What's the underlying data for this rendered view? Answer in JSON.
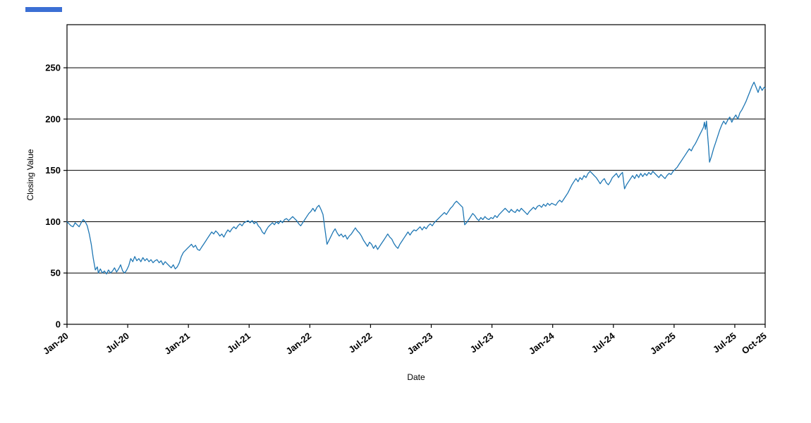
{
  "decoration": {
    "bar_color": "#3b6fd4"
  },
  "chart_data": {
    "type": "line",
    "title": "",
    "xlabel": "Date",
    "ylabel": "Closing Value",
    "series_name": "Closing Value",
    "line_color": "#1f77b4",
    "grid_color": "#000000",
    "background_color": "#ffffff",
    "legend": "none",
    "grid": "horizontal",
    "xlim": [
      0,
      69
    ],
    "ylim": [
      0,
      292
    ],
    "y_ticks": [
      0,
      50,
      100,
      150,
      200,
      250
    ],
    "x_ticks": [
      {
        "label": "Jan-20",
        "m": 0
      },
      {
        "label": "Jul-20",
        "m": 6
      },
      {
        "label": "Jan-21",
        "m": 12
      },
      {
        "label": "Jul-21",
        "m": 18
      },
      {
        "label": "Jan-22",
        "m": 24
      },
      {
        "label": "Jul-22",
        "m": 30
      },
      {
        "label": "Jan-23",
        "m": 36
      },
      {
        "label": "Jul-23",
        "m": 42
      },
      {
        "label": "Jan-24",
        "m": 48
      },
      {
        "label": "Jul-24",
        "m": 54
      },
      {
        "label": "Jan-25",
        "m": 60
      },
      {
        "label": "Jul-25",
        "m": 66
      },
      {
        "label": "Oct-25",
        "m": 69
      }
    ],
    "x_unit": "months since Jan-2020",
    "points": [
      [
        0,
        100
      ],
      [
        0.2,
        98
      ],
      [
        0.4,
        96
      ],
      [
        0.6,
        95
      ],
      [
        0.8,
        99
      ],
      [
        1,
        97
      ],
      [
        1.2,
        95
      ],
      [
        1.4,
        99
      ],
      [
        1.6,
        102
      ],
      [
        1.8,
        100
      ],
      [
        2,
        96
      ],
      [
        2.2,
        88
      ],
      [
        2.4,
        78
      ],
      [
        2.6,
        64
      ],
      [
        2.8,
        53
      ],
      [
        3,
        56
      ],
      [
        3.1,
        50
      ],
      [
        3.3,
        54
      ],
      [
        3.5,
        50
      ],
      [
        3.7,
        52
      ],
      [
        3.9,
        49
      ],
      [
        4.1,
        53
      ],
      [
        4.3,
        50
      ],
      [
        4.5,
        52
      ],
      [
        4.7,
        55
      ],
      [
        4.9,
        51
      ],
      [
        5.1,
        54
      ],
      [
        5.3,
        58
      ],
      [
        5.5,
        52
      ],
      [
        5.7,
        50
      ],
      [
        5.9,
        53
      ],
      [
        6.1,
        57
      ],
      [
        6.3,
        64
      ],
      [
        6.5,
        61
      ],
      [
        6.7,
        66
      ],
      [
        6.9,
        62
      ],
      [
        7.1,
        64
      ],
      [
        7.3,
        61
      ],
      [
        7.5,
        65
      ],
      [
        7.7,
        62
      ],
      [
        7.9,
        64
      ],
      [
        8.1,
        61
      ],
      [
        8.3,
        63
      ],
      [
        8.5,
        60
      ],
      [
        8.7,
        62
      ],
      [
        8.9,
        63
      ],
      [
        9.1,
        60
      ],
      [
        9.3,
        62
      ],
      [
        9.5,
        58
      ],
      [
        9.7,
        61
      ],
      [
        9.9,
        59
      ],
      [
        10.1,
        57
      ],
      [
        10.3,
        55
      ],
      [
        10.5,
        58
      ],
      [
        10.7,
        54
      ],
      [
        10.9,
        56
      ],
      [
        11.1,
        60
      ],
      [
        11.3,
        66
      ],
      [
        11.5,
        70
      ],
      [
        11.7,
        72
      ],
      [
        11.9,
        74
      ],
      [
        12.1,
        76
      ],
      [
        12.3,
        78
      ],
      [
        12.5,
        75
      ],
      [
        12.7,
        77
      ],
      [
        12.9,
        73
      ],
      [
        13.1,
        72
      ],
      [
        13.3,
        75
      ],
      [
        13.5,
        78
      ],
      [
        13.7,
        81
      ],
      [
        13.9,
        84
      ],
      [
        14.1,
        87
      ],
      [
        14.3,
        90
      ],
      [
        14.5,
        88
      ],
      [
        14.7,
        91
      ],
      [
        14.9,
        89
      ],
      [
        15.1,
        86
      ],
      [
        15.3,
        88
      ],
      [
        15.5,
        85
      ],
      [
        15.7,
        89
      ],
      [
        15.9,
        92
      ],
      [
        16.1,
        90
      ],
      [
        16.3,
        93
      ],
      [
        16.5,
        95
      ],
      [
        16.7,
        93
      ],
      [
        16.9,
        96
      ],
      [
        17.1,
        98
      ],
      [
        17.3,
        96
      ],
      [
        17.5,
        99
      ],
      [
        17.7,
        100
      ],
      [
        17.9,
        101
      ],
      [
        18.1,
        99
      ],
      [
        18.3,
        101
      ],
      [
        18.5,
        98
      ],
      [
        18.7,
        100
      ],
      [
        18.9,
        96
      ],
      [
        19.1,
        94
      ],
      [
        19.3,
        90
      ],
      [
        19.5,
        88
      ],
      [
        19.7,
        92
      ],
      [
        19.9,
        95
      ],
      [
        20.1,
        97
      ],
      [
        20.3,
        99
      ],
      [
        20.5,
        97
      ],
      [
        20.7,
        100
      ],
      [
        20.9,
        98
      ],
      [
        21.1,
        101
      ],
      [
        21.3,
        99
      ],
      [
        21.5,
        102
      ],
      [
        21.7,
        103
      ],
      [
        21.9,
        101
      ],
      [
        22.1,
        103
      ],
      [
        22.3,
        105
      ],
      [
        22.5,
        103
      ],
      [
        22.7,
        101
      ],
      [
        22.9,
        98
      ],
      [
        23.1,
        96
      ],
      [
        23.3,
        99
      ],
      [
        23.5,
        102
      ],
      [
        23.7,
        105
      ],
      [
        23.9,
        108
      ],
      [
        24.1,
        110
      ],
      [
        24.3,
        113
      ],
      [
        24.5,
        110
      ],
      [
        24.7,
        114
      ],
      [
        24.9,
        116
      ],
      [
        25.1,
        112
      ],
      [
        25.3,
        107
      ],
      [
        25.5,
        92
      ],
      [
        25.7,
        78
      ],
      [
        25.9,
        82
      ],
      [
        26.1,
        86
      ],
      [
        26.3,
        90
      ],
      [
        26.5,
        93
      ],
      [
        26.7,
        89
      ],
      [
        26.9,
        86
      ],
      [
        27.1,
        88
      ],
      [
        27.3,
        85
      ],
      [
        27.5,
        87
      ],
      [
        27.7,
        83
      ],
      [
        27.9,
        86
      ],
      [
        28.1,
        88
      ],
      [
        28.3,
        91
      ],
      [
        28.5,
        94
      ],
      [
        28.7,
        91
      ],
      [
        28.9,
        89
      ],
      [
        29.1,
        86
      ],
      [
        29.3,
        82
      ],
      [
        29.5,
        79
      ],
      [
        29.7,
        76
      ],
      [
        29.9,
        80
      ],
      [
        30.1,
        78
      ],
      [
        30.3,
        74
      ],
      [
        30.5,
        77
      ],
      [
        30.7,
        73
      ],
      [
        30.9,
        76
      ],
      [
        31.1,
        79
      ],
      [
        31.3,
        82
      ],
      [
        31.5,
        85
      ],
      [
        31.7,
        88
      ],
      [
        31.9,
        85
      ],
      [
        32.1,
        83
      ],
      [
        32.3,
        79
      ],
      [
        32.5,
        76
      ],
      [
        32.7,
        74
      ],
      [
        32.9,
        78
      ],
      [
        33.1,
        81
      ],
      [
        33.3,
        84
      ],
      [
        33.5,
        87
      ],
      [
        33.7,
        90
      ],
      [
        33.9,
        87
      ],
      [
        34.1,
        90
      ],
      [
        34.3,
        92
      ],
      [
        34.5,
        91
      ],
      [
        34.7,
        93
      ],
      [
        34.9,
        95
      ],
      [
        35.1,
        92
      ],
      [
        35.3,
        95
      ],
      [
        35.5,
        93
      ],
      [
        35.7,
        96
      ],
      [
        35.9,
        98
      ],
      [
        36.1,
        96
      ],
      [
        36.3,
        99
      ],
      [
        36.5,
        101
      ],
      [
        36.7,
        103
      ],
      [
        36.9,
        105
      ],
      [
        37.1,
        107
      ],
      [
        37.3,
        109
      ],
      [
        37.5,
        107
      ],
      [
        37.7,
        110
      ],
      [
        37.9,
        113
      ],
      [
        38.1,
        115
      ],
      [
        38.3,
        118
      ],
      [
        38.5,
        120
      ],
      [
        38.7,
        118
      ],
      [
        38.9,
        116
      ],
      [
        39.1,
        114
      ],
      [
        39.3,
        97
      ],
      [
        39.5,
        99
      ],
      [
        39.7,
        102
      ],
      [
        39.9,
        105
      ],
      [
        40.1,
        108
      ],
      [
        40.3,
        106
      ],
      [
        40.5,
        103
      ],
      [
        40.7,
        101
      ],
      [
        40.9,
        104
      ],
      [
        41.1,
        102
      ],
      [
        41.3,
        105
      ],
      [
        41.5,
        103
      ],
      [
        41.7,
        102
      ],
      [
        41.9,
        104
      ],
      [
        42.1,
        103
      ],
      [
        42.3,
        106
      ],
      [
        42.5,
        104
      ],
      [
        42.7,
        107
      ],
      [
        42.9,
        109
      ],
      [
        43.1,
        111
      ],
      [
        43.3,
        113
      ],
      [
        43.5,
        111
      ],
      [
        43.7,
        109
      ],
      [
        43.9,
        112
      ],
      [
        44.1,
        110
      ],
      [
        44.3,
        109
      ],
      [
        44.5,
        112
      ],
      [
        44.7,
        110
      ],
      [
        44.9,
        113
      ],
      [
        45.1,
        111
      ],
      [
        45.3,
        109
      ],
      [
        45.5,
        107
      ],
      [
        45.7,
        110
      ],
      [
        45.9,
        112
      ],
      [
        46.1,
        114
      ],
      [
        46.3,
        112
      ],
      [
        46.5,
        115
      ],
      [
        46.7,
        116
      ],
      [
        46.9,
        114
      ],
      [
        47.1,
        117
      ],
      [
        47.3,
        115
      ],
      [
        47.5,
        118
      ],
      [
        47.7,
        116
      ],
      [
        47.9,
        118
      ],
      [
        48.1,
        117
      ],
      [
        48.3,
        116
      ],
      [
        48.5,
        119
      ],
      [
        48.7,
        121
      ],
      [
        48.9,
        119
      ],
      [
        49.1,
        122
      ],
      [
        49.3,
        125
      ],
      [
        49.5,
        128
      ],
      [
        49.7,
        132
      ],
      [
        49.9,
        136
      ],
      [
        50.1,
        139
      ],
      [
        50.3,
        142
      ],
      [
        50.5,
        139
      ],
      [
        50.7,
        143
      ],
      [
        50.9,
        141
      ],
      [
        51.1,
        145
      ],
      [
        51.3,
        143
      ],
      [
        51.5,
        147
      ],
      [
        51.7,
        149
      ],
      [
        51.9,
        147
      ],
      [
        52.1,
        145
      ],
      [
        52.3,
        143
      ],
      [
        52.5,
        140
      ],
      [
        52.7,
        137
      ],
      [
        52.9,
        140
      ],
      [
        53.1,
        142
      ],
      [
        53.3,
        138
      ],
      [
        53.5,
        136
      ],
      [
        53.7,
        139
      ],
      [
        53.9,
        143
      ],
      [
        54.1,
        145
      ],
      [
        54.3,
        147
      ],
      [
        54.5,
        143
      ],
      [
        54.7,
        146
      ],
      [
        54.9,
        148
      ],
      [
        55.1,
        132
      ],
      [
        55.3,
        136
      ],
      [
        55.5,
        139
      ],
      [
        55.7,
        142
      ],
      [
        55.9,
        145
      ],
      [
        56.1,
        142
      ],
      [
        56.3,
        146
      ],
      [
        56.5,
        143
      ],
      [
        56.7,
        147
      ],
      [
        56.9,
        144
      ],
      [
        57.1,
        147
      ],
      [
        57.3,
        145
      ],
      [
        57.5,
        148
      ],
      [
        57.7,
        146
      ],
      [
        57.9,
        149
      ],
      [
        58.1,
        147
      ],
      [
        58.3,
        145
      ],
      [
        58.5,
        143
      ],
      [
        58.7,
        146
      ],
      [
        58.9,
        144
      ],
      [
        59.1,
        142
      ],
      [
        59.3,
        145
      ],
      [
        59.5,
        147
      ],
      [
        59.7,
        146
      ],
      [
        59.9,
        149
      ],
      [
        60.1,
        151
      ],
      [
        60.3,
        153
      ],
      [
        60.5,
        156
      ],
      [
        60.7,
        159
      ],
      [
        60.9,
        162
      ],
      [
        61.1,
        165
      ],
      [
        61.3,
        168
      ],
      [
        61.5,
        171
      ],
      [
        61.7,
        169
      ],
      [
        61.9,
        173
      ],
      [
        62.1,
        176
      ],
      [
        62.3,
        180
      ],
      [
        62.5,
        184
      ],
      [
        62.7,
        188
      ],
      [
        62.9,
        192
      ],
      [
        63,
        197
      ],
      [
        63.1,
        190
      ],
      [
        63.2,
        198
      ],
      [
        63.3,
        186
      ],
      [
        63.4,
        173
      ],
      [
        63.5,
        158
      ],
      [
        63.7,
        164
      ],
      [
        63.9,
        171
      ],
      [
        64.1,
        177
      ],
      [
        64.3,
        183
      ],
      [
        64.5,
        189
      ],
      [
        64.7,
        194
      ],
      [
        64.9,
        198
      ],
      [
        65.1,
        195
      ],
      [
        65.3,
        199
      ],
      [
        65.5,
        202
      ],
      [
        65.7,
        197
      ],
      [
        65.9,
        201
      ],
      [
        66.1,
        204
      ],
      [
        66.3,
        200
      ],
      [
        66.5,
        206
      ],
      [
        66.7,
        209
      ],
      [
        66.9,
        213
      ],
      [
        67.1,
        217
      ],
      [
        67.3,
        222
      ],
      [
        67.5,
        227
      ],
      [
        67.7,
        232
      ],
      [
        67.9,
        236
      ],
      [
        68.1,
        231
      ],
      [
        68.3,
        226
      ],
      [
        68.5,
        232
      ],
      [
        68.7,
        228
      ],
      [
        68.9,
        231
      ],
      [
        69,
        230
      ]
    ]
  }
}
